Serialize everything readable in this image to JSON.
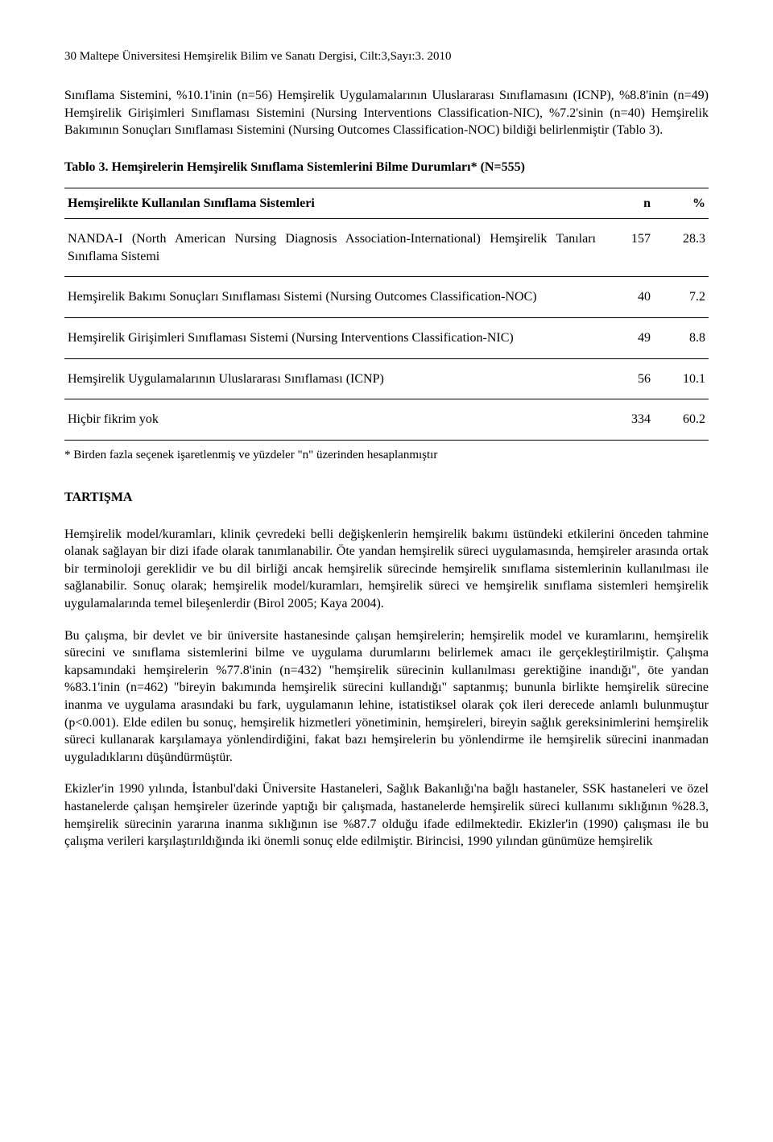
{
  "header": "30 Maltepe Üniversitesi Hemşirelik Bilim ve Sanatı Dergisi, Cilt:3,Sayı:3. 2010",
  "intro_para": "Sınıflama Sistemini, %10.1'inin (n=56) Hemşirelik Uygulamalarının Uluslararası Sınıflamasını (ICNP), %8.8'inin (n=49) Hemşirelik Girişimleri Sınıflaması Sistemini (Nursing Interventions Classification-NIC), %7.2'sinin (n=40) Hemşirelik Bakımının Sonuçları Sınıflaması Sistemini (Nursing Outcomes Classification-NOC) bildiği belirlenmiştir (Tablo 3).",
  "table": {
    "title": "Tablo 3. Hemşirelerin Hemşirelik Sınıflama Sistemlerini Bilme Durumları* (N=555)",
    "columns": [
      "Hemşirelikte Kullanılan Sınıflama Sistemleri",
      "n",
      "%"
    ],
    "rows": [
      {
        "label": "NANDA-I (North American Nursing Diagnosis Association-International) Hemşirelik Tanıları Sınıflama Sistemi",
        "n": "157",
        "pct": "28.3"
      },
      {
        "label": "Hemşirelik Bakımı Sonuçları Sınıflaması Sistemi (Nursing Outcomes Classification-NOC)",
        "n": "40",
        "pct": "7.2"
      },
      {
        "label": "Hemşirelik Girişimleri Sınıflaması Sistemi (Nursing Interventions Classification-NIC)",
        "n": "49",
        "pct": "8.8"
      },
      {
        "label": "Hemşirelik Uygulamalarının Uluslararası Sınıflaması (ICNP)",
        "n": "56",
        "pct": "10.1"
      },
      {
        "label": "Hiçbir fikrim yok",
        "n": "334",
        "pct": "60.2"
      }
    ],
    "footnote": "* Birden fazla seçenek işaretlenmiş ve yüzdeler \"n\" üzerinden hesaplanmıştır"
  },
  "section_title": "TARTIŞMA",
  "body_paras": [
    "Hemşirelik model/kuramları, klinik çevredeki belli değişkenlerin hemşirelik bakımı üstündeki etkilerini önceden tahmine olanak sağlayan bir dizi ifade olarak tanımlanabilir. Öte yandan hemşirelik süreci uygulamasında, hemşireler arasında ortak bir terminoloji gereklidir ve bu dil birliği ancak hemşirelik sürecinde hemşirelik sınıflama sistemlerinin kullanılması ile sağlanabilir. Sonuç olarak; hemşirelik model/kuramları, hemşirelik süreci ve hemşirelik sınıflama sistemleri hemşirelik uygulamalarında temel bileşenlerdir (Birol 2005; Kaya 2004).",
    "Bu çalışma, bir devlet ve bir üniversite hastanesinde çalışan hemşirelerin; hemşirelik model ve kuramlarını, hemşirelik sürecini ve sınıflama sistemlerini bilme ve uygulama durumlarını belirlemek amacı ile gerçekleştirilmiştir. Çalışma kapsamındaki hemşirelerin %77.8'inin (n=432) \"hemşirelik sürecinin kullanılması gerektiğine inandığı\", öte yandan %83.1'inin (n=462) \"bireyin bakımında hemşirelik sürecini kullandığı\" saptanmış; bununla birlikte hemşirelik sürecine inanma ve uygulama arasındaki bu fark, uygulamanın lehine, istatistiksel olarak çok ileri derecede anlamlı bulunmuştur (p<0.001). Elde edilen bu sonuç, hemşirelik hizmetleri yönetiminin, hemşireleri, bireyin sağlık gereksinimlerini hemşirelik süreci kullanarak karşılamaya yönlendirdiğini, fakat bazı hemşirelerin bu yönlendirme ile hemşirelik sürecini inanmadan uyguladıklarını düşündürmüştür.",
    "Ekizler'in 1990 yılında, İstanbul'daki Üniversite Hastaneleri, Sağlık Bakanlığı'na bağlı hastaneler, SSK hastaneleri ve özel hastanelerde çalışan hemşireler üzerinde yaptığı bir çalışmada, hastanelerde hemşirelik süreci kullanımı sıklığının %28.3, hemşirelik sürecinin yararına inanma sıklığının ise %87.7 olduğu ifade edilmektedir. Ekizler'in (1990) çalışması ile bu çalışma verileri karşılaştırıldığında iki önemli sonuç elde edilmiştir. Birincisi, 1990 yılından günümüze hemşirelik"
  ]
}
